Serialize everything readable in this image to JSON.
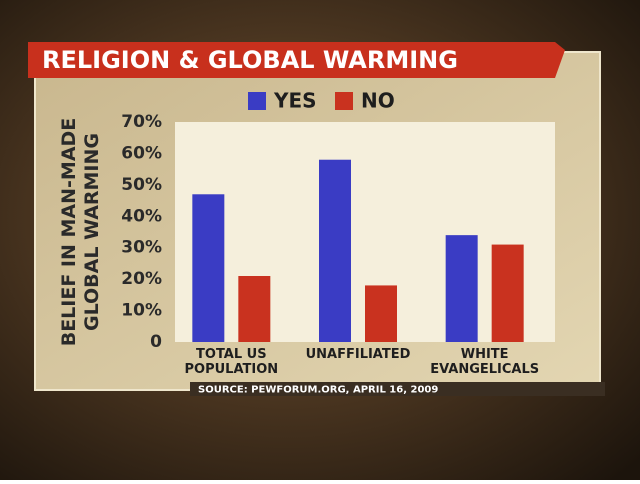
{
  "chart_data": {
    "type": "bar",
    "title": "RELIGION & GLOBAL WARMING",
    "y_label": [
      "BELIEF IN MAN-MADE",
      "GLOBAL WARMING"
    ],
    "categories": [
      "TOTAL US\nPOPULATION",
      "UNAFFILIATED",
      "WHITE\nEVANGELICALS"
    ],
    "series": [
      {
        "name": "YES",
        "color": "#3a3cc4",
        "values": [
          47,
          58,
          34
        ]
      },
      {
        "name": "NO",
        "color": "#c9321f",
        "values": [
          21,
          18,
          31
        ]
      }
    ],
    "ylim": [
      0,
      70
    ],
    "yticks": [
      0,
      {
        "value": 10,
        "label": "10%"
      },
      {
        "value": 20,
        "label": "20%"
      },
      {
        "value": 30,
        "label": "30%"
      },
      {
        "value": 40,
        "label": "40%"
      },
      {
        "value": 50,
        "label": "50%"
      },
      {
        "value": 60,
        "label": "60%"
      },
      {
        "value": 70,
        "label": "70%"
      }
    ],
    "source": "SOURCE: PEWFORUM.ORG, APRIL 16, 2009"
  }
}
